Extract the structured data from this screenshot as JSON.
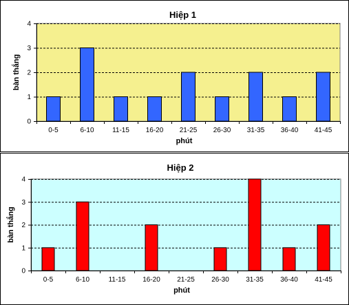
{
  "chart_data": [
    {
      "type": "bar",
      "title": "Hiệp 1",
      "xlabel": "phút",
      "ylabel": "bàn thắng",
      "categories": [
        "0-5",
        "6-10",
        "11-15",
        "16-20",
        "21-25",
        "26-30",
        "31-35",
        "36-40",
        "41-45"
      ],
      "values": [
        1,
        3,
        1,
        1,
        2,
        1,
        2,
        1,
        2
      ],
      "ylim": [
        0,
        4
      ],
      "yticks": [
        0,
        1,
        2,
        3,
        4
      ],
      "grid": "horizontal dashed",
      "bar_color": "#3366ff",
      "plot_background": "#f5f08f"
    },
    {
      "type": "bar",
      "title": "Hiệp 2",
      "xlabel": "phút",
      "ylabel": "bàn thắng",
      "categories": [
        "0-5",
        "6-10",
        "11-15",
        "16-20",
        "21-25",
        "26-30",
        "31-35",
        "36-40",
        "41-45"
      ],
      "values": [
        1,
        3,
        0,
        2,
        0,
        1,
        4,
        1,
        2
      ],
      "ylim": [
        0,
        4
      ],
      "yticks": [
        0,
        1,
        2,
        3,
        4
      ],
      "grid": "horizontal dashed",
      "bar_color": "#ff0000",
      "plot_background": "#ccffff"
    }
  ]
}
